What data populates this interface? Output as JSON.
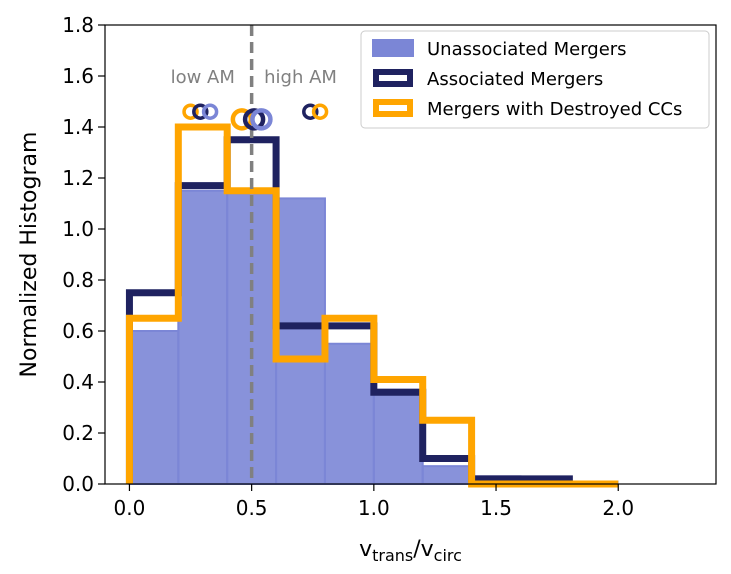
{
  "chart_data": {
    "type": "histogram",
    "xlabel": {
      "main": "v",
      "sub1": "trans",
      "slash": "/v",
      "sub2": "circ"
    },
    "ylabel": "Normalized Histogram",
    "xlim": [
      -0.1,
      2.4
    ],
    "ylim": [
      0,
      1.8
    ],
    "xticks": [
      0.0,
      0.5,
      1.0,
      1.5,
      2.0
    ],
    "xtick_labels": [
      "0.0",
      "0.5",
      "1.0",
      "1.5",
      "2.0"
    ],
    "yticks": [
      0.0,
      0.2,
      0.4,
      0.6,
      0.8,
      1.0,
      1.2,
      1.4,
      1.6,
      1.8
    ],
    "ytick_labels": [
      "0.0",
      "0.2",
      "0.4",
      "0.6",
      "0.8",
      "1.0",
      "1.2",
      "1.4",
      "1.6",
      "1.8"
    ],
    "bin_edges": [
      0.0,
      0.2,
      0.4,
      0.6,
      0.8,
      1.0,
      1.2,
      1.4,
      1.6,
      1.8,
      2.0
    ],
    "series": [
      {
        "name": "Unassociated Mergers",
        "style": "filled",
        "color": "#7b86d6",
        "values": [
          0.6,
          1.15,
          1.14,
          1.12,
          0.55,
          0.37,
          0.07,
          0.03,
          0.01,
          0.0
        ]
      },
      {
        "name": "Associated Mergers",
        "style": "step",
        "color": "#1f2260",
        "values": [
          0.75,
          1.17,
          1.35,
          0.62,
          0.62,
          0.36,
          0.1,
          0.02,
          0.02,
          0.0
        ]
      },
      {
        "name": "Mergers with Destroyed CCs",
        "style": "step",
        "color": "#ffa500",
        "values": [
          0.65,
          1.4,
          1.15,
          0.49,
          0.65,
          0.41,
          0.25,
          0.0,
          0.0,
          0.0
        ]
      }
    ],
    "markers": [
      {
        "series": "Mergers with Destroyed CCs",
        "x": 0.25,
        "y": 1.46,
        "size": "small"
      },
      {
        "series": "Associated Mergers",
        "x": 0.29,
        "y": 1.46,
        "size": "small"
      },
      {
        "series": "Unassociated Mergers",
        "x": 0.33,
        "y": 1.46,
        "size": "small"
      },
      {
        "series": "Mergers with Destroyed CCs",
        "x": 0.46,
        "y": 1.43,
        "size": "large"
      },
      {
        "series": "Associated Mergers",
        "x": 0.51,
        "y": 1.43,
        "size": "large"
      },
      {
        "series": "Unassociated Mergers",
        "x": 0.54,
        "y": 1.43,
        "size": "large"
      },
      {
        "series": "Associated Mergers",
        "x": 0.74,
        "y": 1.46,
        "size": "small"
      },
      {
        "series": "Mergers with Destroyed CCs",
        "x": 0.78,
        "y": 1.46,
        "size": "small"
      }
    ],
    "vline": {
      "x": 0.5,
      "color": "#808080",
      "style": "dashed"
    },
    "annotations": [
      {
        "text": "low AM",
        "x": 0.3,
        "y": 1.6
      },
      {
        "text": "high AM",
        "x": 0.7,
        "y": 1.6
      }
    ],
    "legend": {
      "position": "top-right"
    }
  }
}
